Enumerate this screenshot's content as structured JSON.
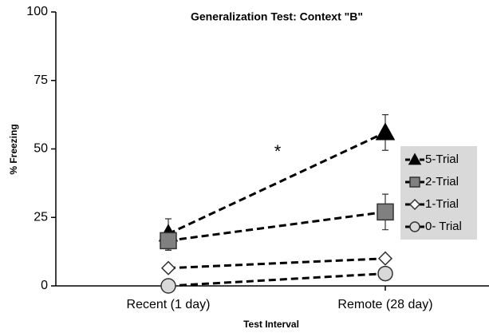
{
  "chart_data": {
    "type": "line",
    "title": "Generalization Test: Context \"B\"",
    "xlabel": "Test Interval",
    "ylabel": "% Freezing",
    "annotation": "*",
    "categories": [
      "Recent (1 day)",
      "Remote (28 day)"
    ],
    "ylim": [
      0,
      100
    ],
    "yticks": [
      0,
      25,
      50,
      75,
      100
    ],
    "series": [
      {
        "name": "5-Trial",
        "color": "#000000",
        "marker": "triangle",
        "values": [
          19,
          56
        ],
        "errors": [
          5.5,
          6.5
        ]
      },
      {
        "name": "2-Trial",
        "color": "#808080",
        "marker": "square",
        "values": [
          16.5,
          27
        ],
        "errors": [
          3.5,
          6.5
        ]
      },
      {
        "name": "1-Trial",
        "color": "#ffffff",
        "marker": "diamond",
        "values": [
          6.5,
          10
        ]
      },
      {
        "name": "0- Trial",
        "color": "#d9d9d9",
        "marker": "circle",
        "values": [
          0,
          4.5
        ]
      }
    ]
  }
}
